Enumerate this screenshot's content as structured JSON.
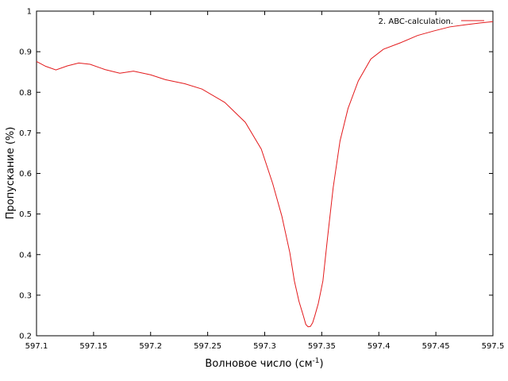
{
  "chart_data": {
    "type": "line",
    "title": "",
    "xlabel": "Волновое число (см",
    "xlabel_sup": "-1",
    "xlabel_suffix": ")",
    "ylabel": "Пропускание (%)",
    "xlim": [
      597.1,
      597.5
    ],
    "ylim": [
      0.2,
      1.0
    ],
    "grid": false,
    "legend_position": "top-right",
    "x_ticks": [
      597.1,
      597.15,
      597.2,
      597.25,
      597.3,
      597.35,
      597.4,
      597.45,
      597.5
    ],
    "x_tick_labels": [
      "597.1",
      "597.15",
      "597.2",
      "597.25",
      "597.3",
      "597.35",
      "597.4",
      "597.45",
      "597.5"
    ],
    "y_ticks": [
      0.2,
      0.3,
      0.4,
      0.5,
      0.6,
      0.7,
      0.8,
      0.9,
      1.0
    ],
    "y_tick_labels": [
      "0.2",
      "0.3",
      "0.4",
      "0.5",
      "0.6",
      "0.7",
      "0.8",
      "0.9",
      "1"
    ],
    "series": [
      {
        "name": "2. ABC-calculation.",
        "color": "#e31a1c",
        "x": [
          597.1,
          597.108,
          597.117,
          597.127,
          597.137,
          597.147,
          597.16,
          597.173,
          597.185,
          597.2,
          597.213,
          597.23,
          597.245,
          597.265,
          597.283,
          597.297,
          597.307,
          597.315,
          597.322,
          597.326,
          597.33,
          597.334,
          597.336,
          597.338,
          597.34,
          597.342,
          597.344,
          597.347,
          597.351,
          597.355,
          597.36,
          597.366,
          597.373,
          597.382,
          597.393,
          597.404,
          597.419,
          597.434,
          597.448,
          597.462,
          597.475,
          597.489,
          597.5
        ],
        "y": [
          0.876,
          0.864,
          0.855,
          0.865,
          0.872,
          0.869,
          0.856,
          0.847,
          0.852,
          0.843,
          0.831,
          0.821,
          0.808,
          0.775,
          0.726,
          0.66,
          0.575,
          0.495,
          0.405,
          0.335,
          0.285,
          0.248,
          0.228,
          0.222,
          0.223,
          0.232,
          0.25,
          0.28,
          0.335,
          0.44,
          0.565,
          0.68,
          0.76,
          0.828,
          0.882,
          0.906,
          0.922,
          0.94,
          0.951,
          0.961,
          0.966,
          0.971,
          0.974
        ]
      }
    ]
  }
}
